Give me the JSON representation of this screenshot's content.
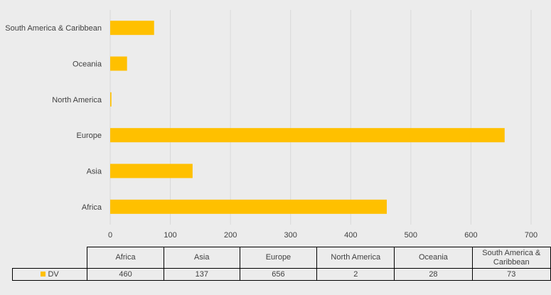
{
  "chart_data": {
    "type": "bar",
    "orientation": "horizontal",
    "categories": [
      "Africa",
      "Asia",
      "Europe",
      "North America",
      "Oceania",
      "South America & Caribbean"
    ],
    "series": [
      {
        "name": "DV",
        "values": [
          460,
          137,
          656,
          2,
          28,
          73
        ],
        "color": "#ffc000"
      }
    ],
    "xticks": [
      "0",
      "100",
      "200",
      "300",
      "400",
      "500",
      "600",
      "700"
    ],
    "xlim": [
      0,
      700
    ],
    "grid": true,
    "legend": "data-table"
  }
}
